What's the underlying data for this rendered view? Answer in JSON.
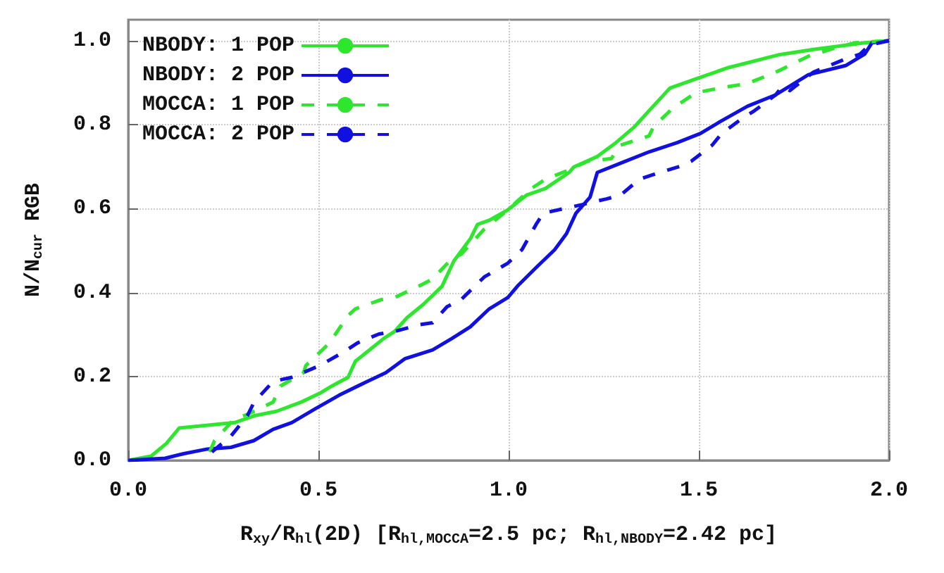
{
  "chart_data": {
    "type": "line",
    "xlabel": "R$_{xy}$/R$_{hl}$(2D) [R$_{hl,MOCCA}$=2.5 pc; R$_{hl,NBODY}$=2.42 pc]",
    "ylabel": "N/N$_{cur}$ RGB",
    "xlim": [
      0,
      2
    ],
    "xticks": [
      {
        "value": 0,
        "label": "0.0"
      },
      {
        "value": 0.5,
        "label": "0.5"
      },
      {
        "value": 1,
        "label": "1.0"
      },
      {
        "value": 1.5,
        "label": "1.5"
      },
      {
        "value": 2,
        "label": "2.0"
      }
    ],
    "ylim": [
      0,
      1.05
    ],
    "yticks": [
      {
        "value": 0,
        "label": "0.0"
      },
      {
        "value": 0.2,
        "label": "0.2"
      },
      {
        "value": 0.4,
        "label": "0.4"
      },
      {
        "value": 0.6,
        "label": "0.6"
      },
      {
        "value": 0.8,
        "label": "0.8"
      },
      {
        "value": 1,
        "label": "1.0"
      }
    ],
    "grid": true,
    "legend": "top left",
    "marker": "none",
    "series": [
      {
        "name": "NBODY: 1 POP",
        "color": "#2ee62e",
        "line_style": "solid",
        "x": [
          0,
          0.06,
          0.1,
          0.134,
          0.177,
          0.28,
          0.33,
          0.39,
          0.455,
          0.504,
          0.535,
          0.578,
          0.597,
          0.634,
          0.671,
          0.7,
          0.733,
          0.776,
          0.825,
          0.856,
          0.9,
          0.918,
          0.949,
          0.998,
          1.047,
          1.097,
          1.159,
          1.171,
          1.233,
          1.282,
          1.331,
          1.369,
          1.424,
          1.492,
          1.578,
          1.708,
          1.801,
          1.936,
          2.0
        ],
        "values": [
          0,
          0.01,
          0.04,
          0.077,
          0.081,
          0.09,
          0.106,
          0.117,
          0.139,
          0.16,
          0.177,
          0.198,
          0.236,
          0.263,
          0.29,
          0.307,
          0.34,
          0.372,
          0.415,
          0.475,
          0.529,
          0.562,
          0.572,
          0.597,
          0.632,
          0.648,
          0.686,
          0.699,
          0.724,
          0.757,
          0.795,
          0.833,
          0.887,
          0.909,
          0.936,
          0.966,
          0.979,
          0.995,
          1.0
        ]
      },
      {
        "name": "NBODY: 2 POP",
        "color": "#1010e0",
        "line_style": "solid",
        "x": [
          0,
          0.097,
          0.146,
          0.208,
          0.27,
          0.33,
          0.381,
          0.43,
          0.492,
          0.554,
          0.628,
          0.677,
          0.727,
          0.8,
          0.85,
          0.899,
          0.949,
          0.998,
          1.023,
          1.072,
          1.121,
          1.152,
          1.177,
          1.214,
          1.233,
          1.294,
          1.369,
          1.443,
          1.504,
          1.554,
          1.628,
          1.702,
          1.788,
          1.887,
          1.936,
          1.955,
          2.0
        ],
        "values": [
          0,
          0.005,
          0.016,
          0.027,
          0.031,
          0.047,
          0.074,
          0.09,
          0.123,
          0.155,
          0.188,
          0.209,
          0.242,
          0.263,
          0.29,
          0.318,
          0.361,
          0.388,
          0.415,
          0.459,
          0.502,
          0.54,
          0.589,
          0.627,
          0.686,
          0.708,
          0.735,
          0.757,
          0.779,
          0.806,
          0.844,
          0.871,
          0.919,
          0.941,
          0.968,
          0.995,
          1.0
        ]
      },
      {
        "name": "MOCCA: 1 POP",
        "color": "#2ee62e",
        "line_style": "dashed",
        "x": [
          0.214,
          0.227,
          0.276,
          0.319,
          0.381,
          0.4,
          0.461,
          0.467,
          0.51,
          0.529,
          0.578,
          0.597,
          0.665,
          0.7,
          0.764,
          0.8,
          0.85,
          0.875,
          0.936,
          0.998,
          1.06,
          1.097,
          1.159,
          1.208,
          1.27,
          1.294,
          1.369,
          1.381,
          1.43,
          1.492,
          1.554,
          1.628,
          1.702,
          1.739,
          1.788,
          1.862,
          1.912,
          2.0
        ],
        "values": [
          0.02,
          0.047,
          0.096,
          0.112,
          0.139,
          0.177,
          0.209,
          0.226,
          0.263,
          0.28,
          0.345,
          0.361,
          0.383,
          0.388,
          0.415,
          0.432,
          0.48,
          0.491,
          0.551,
          0.597,
          0.648,
          0.67,
          0.692,
          0.713,
          0.719,
          0.751,
          0.773,
          0.795,
          0.838,
          0.876,
          0.887,
          0.898,
          0.925,
          0.941,
          0.963,
          0.984,
          0.995,
          1.0
        ]
      },
      {
        "name": "MOCCA: 2 POP",
        "color": "#1010e0",
        "line_style": "dashed",
        "x": [
          0.22,
          0.27,
          0.313,
          0.331,
          0.381,
          0.43,
          0.504,
          0.566,
          0.603,
          0.659,
          0.7,
          0.764,
          0.8,
          0.838,
          0.875,
          0.936,
          0.998,
          1.035,
          1.072,
          1.091,
          1.146,
          1.196,
          1.257,
          1.294,
          1.344,
          1.381,
          1.455,
          1.48,
          1.535,
          1.56,
          1.616,
          1.646,
          1.702,
          1.72,
          1.739,
          1.801,
          1.887,
          1.924,
          1.949,
          2.0
        ],
        "values": [
          0.02,
          0.058,
          0.106,
          0.139,
          0.188,
          0.198,
          0.226,
          0.258,
          0.28,
          0.301,
          0.307,
          0.323,
          0.328,
          0.366,
          0.383,
          0.437,
          0.47,
          0.502,
          0.562,
          0.589,
          0.6,
          0.61,
          0.623,
          0.632,
          0.67,
          0.681,
          0.702,
          0.713,
          0.751,
          0.779,
          0.816,
          0.833,
          0.871,
          0.892,
          0.881,
          0.925,
          0.957,
          0.968,
          0.99,
          1.0
        ]
      }
    ]
  }
}
